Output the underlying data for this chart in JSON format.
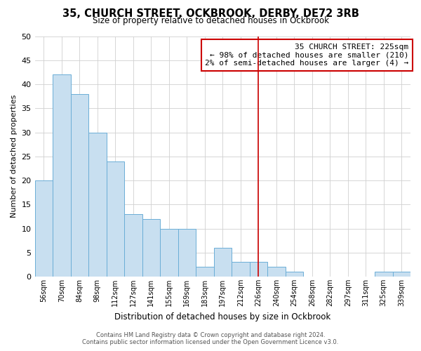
{
  "title": "35, CHURCH STREET, OCKBROOK, DERBY, DE72 3RB",
  "subtitle": "Size of property relative to detached houses in Ockbrook",
  "xlabel": "Distribution of detached houses by size in Ockbrook",
  "ylabel": "Number of detached properties",
  "bar_labels": [
    "56sqm",
    "70sqm",
    "84sqm",
    "98sqm",
    "112sqm",
    "127sqm",
    "141sqm",
    "155sqm",
    "169sqm",
    "183sqm",
    "197sqm",
    "212sqm",
    "226sqm",
    "240sqm",
    "254sqm",
    "268sqm",
    "282sqm",
    "297sqm",
    "311sqm",
    "325sqm",
    "339sqm"
  ],
  "bar_values": [
    20,
    42,
    38,
    30,
    24,
    13,
    12,
    10,
    10,
    2,
    6,
    3,
    3,
    2,
    1,
    0,
    0,
    0,
    0,
    1,
    1
  ],
  "bar_color": "#c8dff0",
  "bar_edge_color": "#6baed6",
  "vline_x_index": 12,
  "vline_color": "#cc0000",
  "annotation_title": "35 CHURCH STREET: 225sqm",
  "annotation_line1": "← 98% of detached houses are smaller (210)",
  "annotation_line2": "2% of semi-detached houses are larger (4) →",
  "annotation_box_color": "#ffffff",
  "annotation_box_edge_color": "#cc0000",
  "ylim": [
    0,
    50
  ],
  "yticks": [
    0,
    5,
    10,
    15,
    20,
    25,
    30,
    35,
    40,
    45,
    50
  ],
  "background_color": "#ffffff",
  "grid_color": "#d0d0d0",
  "footer_line1": "Contains HM Land Registry data © Crown copyright and database right 2024.",
  "footer_line2": "Contains public sector information licensed under the Open Government Licence v3.0."
}
